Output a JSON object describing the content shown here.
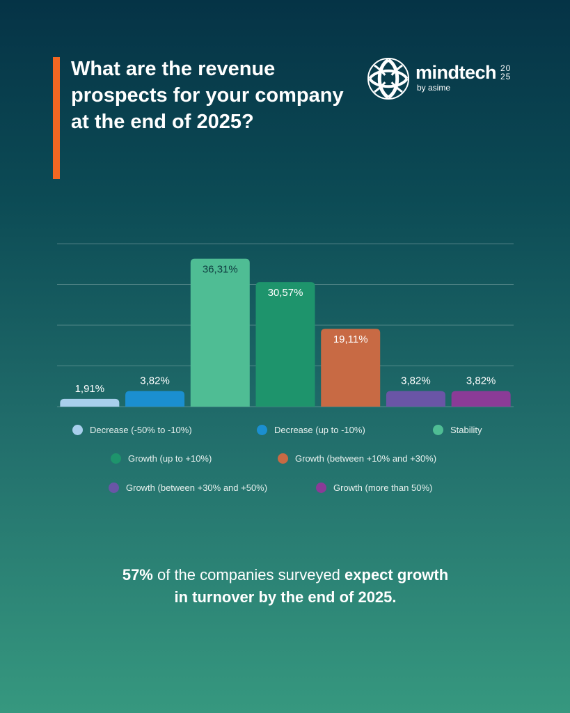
{
  "title": "What are the revenue prospects for your company at the end of 2025?",
  "logo": {
    "wordmark": "mindtech",
    "subtitle": "by asime",
    "year_top": "20",
    "year_bottom": "25",
    "icon": "swirl-globe-icon"
  },
  "colors": {
    "accent": "#f26722",
    "decrease_large": "#a8cfec",
    "decrease_small": "#1b8fd0",
    "stability": "#4fbd94",
    "growth_small": "#1e946c",
    "growth_mid": "#c86a44",
    "growth_large": "#6a55a6",
    "growth_xlarge": "#8b3b97"
  },
  "chart_data": {
    "type": "bar",
    "categories": [
      "Decrease (-50% to -10%)",
      "Decrease (up to -10%)",
      "Stability",
      "Growth (up to +10%)",
      "Growth (between +10% and +30%)",
      "Growth (between +30% and +50%)",
      "Growth (more than 50%)"
    ],
    "values": [
      1.91,
      3.82,
      36.31,
      30.57,
      19.11,
      3.82,
      3.82
    ],
    "data_labels": [
      "1,91%",
      "3,82%",
      "36,31%",
      "30,57%",
      "19,11%",
      "3,82%",
      "3,82%"
    ],
    "colors": [
      "#a8cfec",
      "#1b8fd0",
      "#4fbd94",
      "#1e946c",
      "#c86a44",
      "#6a55a6",
      "#8b3b97"
    ],
    "ylim": [
      0,
      40
    ],
    "gridlines": [
      0,
      10,
      20,
      30,
      40
    ],
    "grid": true,
    "legend_position": "bottom"
  },
  "footer": {
    "part1": "57%",
    "part2": " of the companies surveyed ",
    "part3": "expect growth",
    "part4": "in turnover by the end of 2025."
  }
}
